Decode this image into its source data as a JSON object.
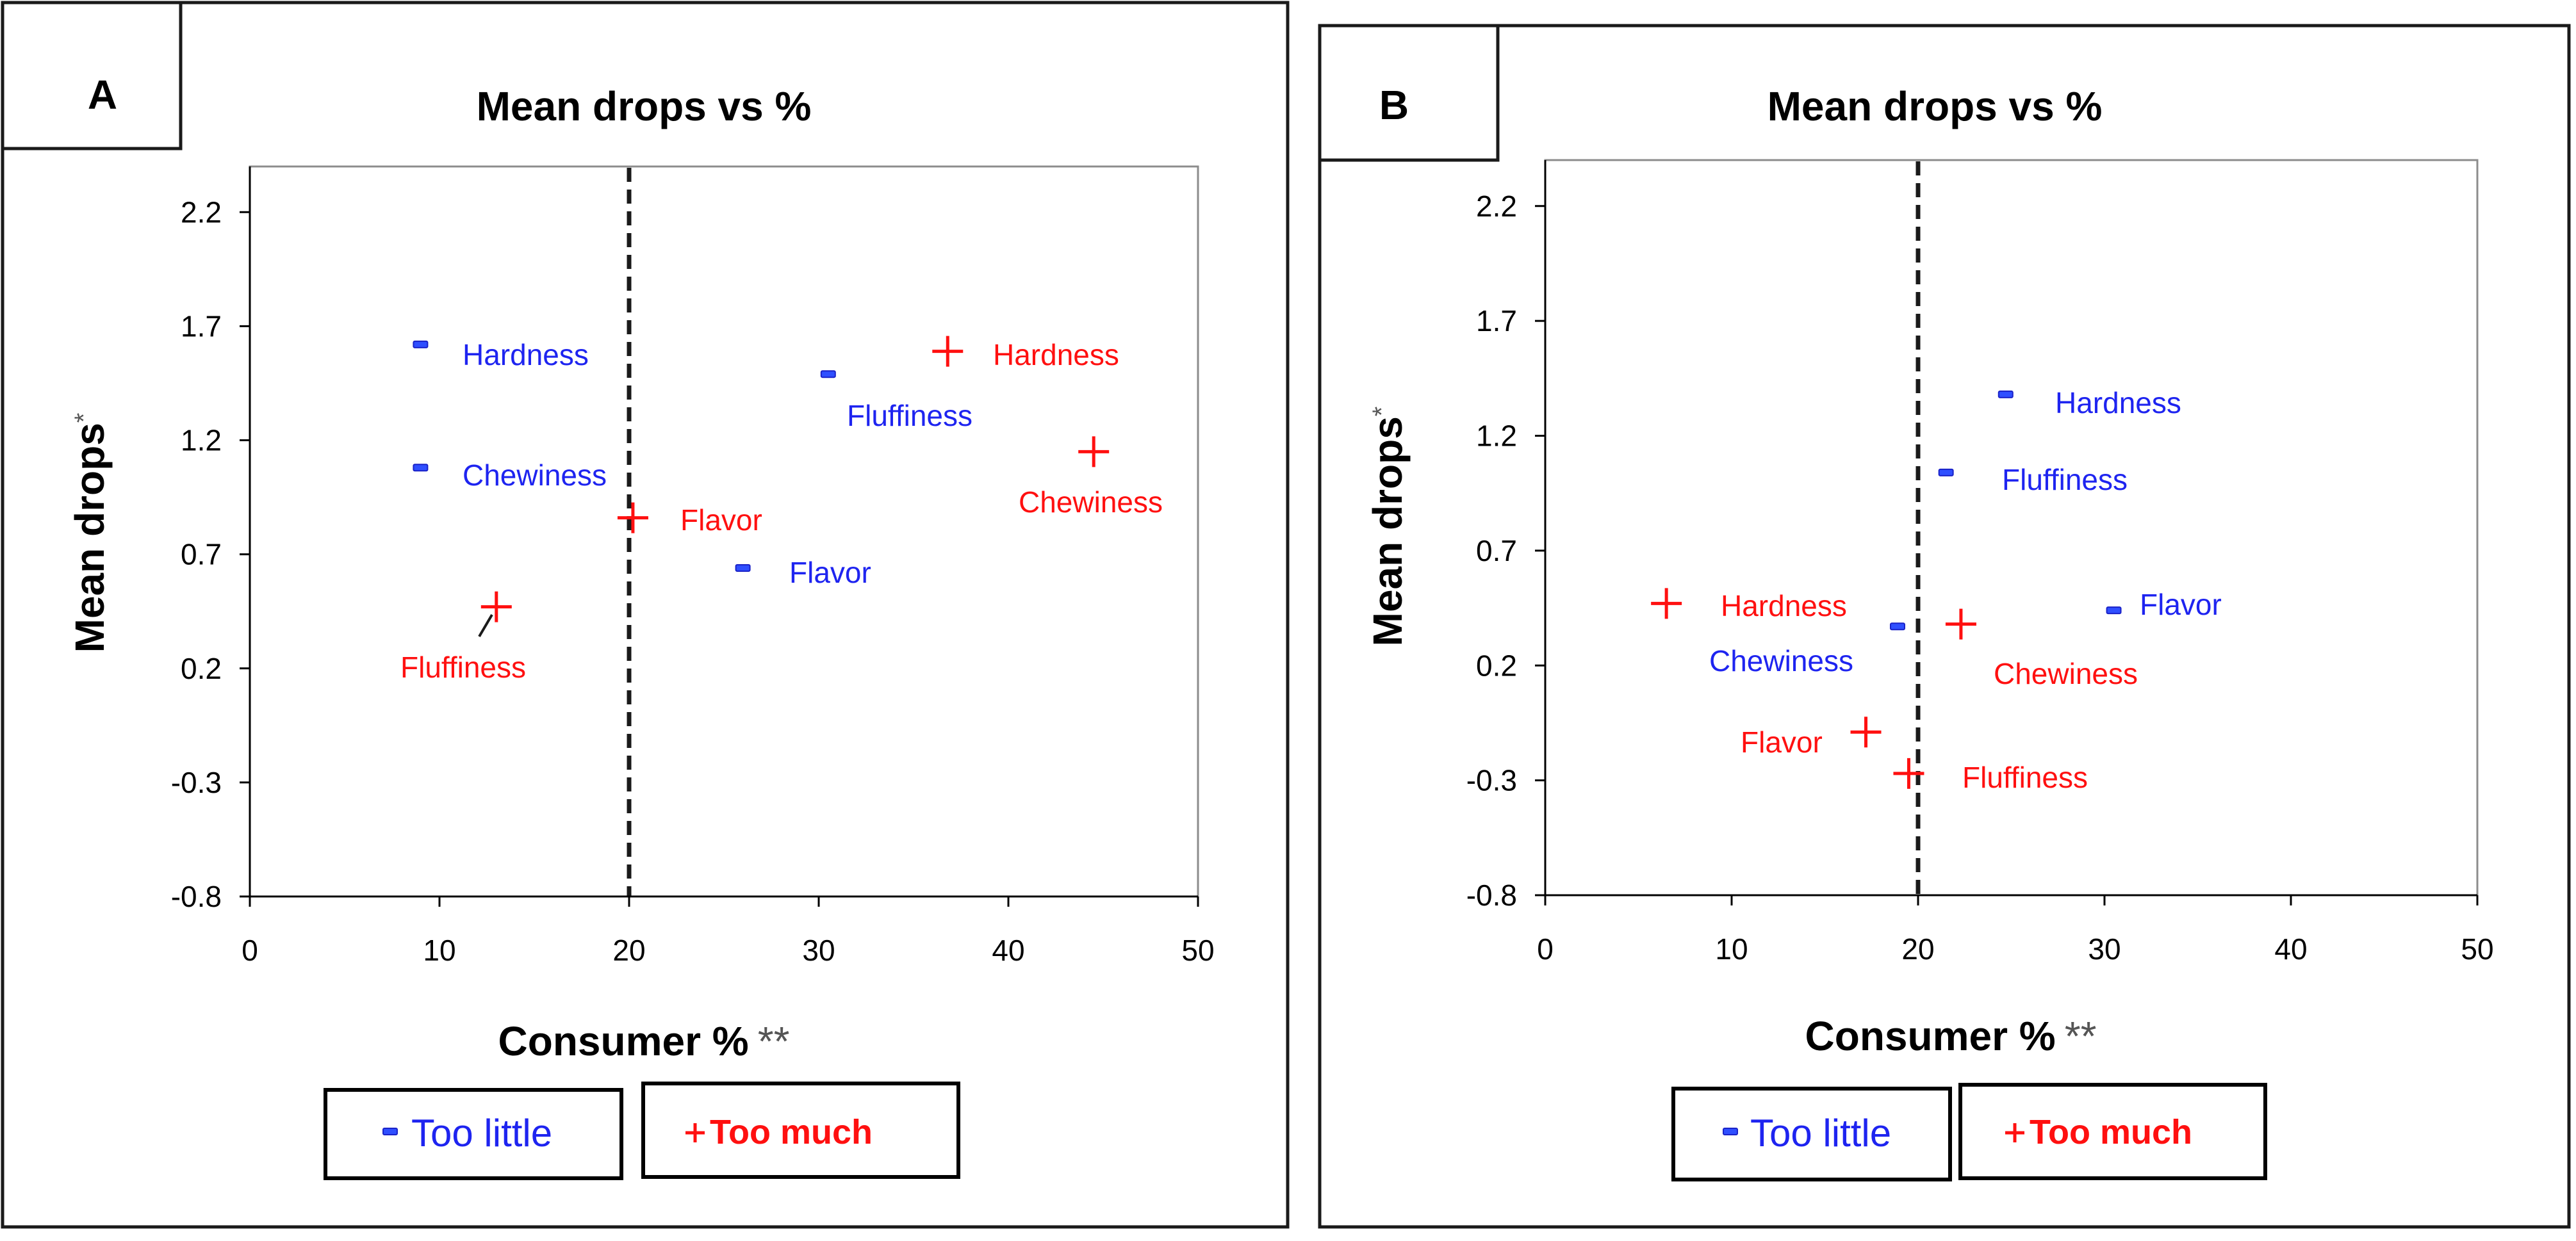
{
  "chart_data": [
    {
      "panel": "A",
      "type": "scatter",
      "title": "Mean drops vs %",
      "xlabel": "Consumer %",
      "xlabel_suffix": "**",
      "ylabel": "Mean drops",
      "ylabel_suffix": "*",
      "xlim": [
        0,
        50
      ],
      "ylim": [
        -0.8,
        2.4
      ],
      "xticks": [
        0,
        10,
        20,
        30,
        40,
        50
      ],
      "yticks": [
        -0.8,
        -0.3,
        0.2,
        0.7,
        1.2,
        1.7,
        2.2
      ],
      "reference_x": 20,
      "series": [
        {
          "name": "Too little",
          "marker": "dash",
          "color": "#1e24f0",
          "points": [
            {
              "label": "Hardness",
              "x": 9.0,
              "y": 1.62
            },
            {
              "label": "Chewiness",
              "x": 9.0,
              "y": 1.08
            },
            {
              "label": "Fluffiness",
              "x": 30.5,
              "y": 1.49
            },
            {
              "label": "Flavor",
              "x": 26.0,
              "y": 0.64
            }
          ]
        },
        {
          "name": "Too much",
          "marker": "plus",
          "color": "#ff1010",
          "points": [
            {
              "label": "Hardness",
              "x": 36.8,
              "y": 1.59
            },
            {
              "label": "Chewiness",
              "x": 44.5,
              "y": 1.15
            },
            {
              "label": "Flavor",
              "x": 20.2,
              "y": 0.86
            },
            {
              "label": "Fluffiness",
              "x": 13.0,
              "y": 0.47
            }
          ]
        }
      ],
      "legend": {
        "too_little": "Too little",
        "too_much": "Too much"
      }
    },
    {
      "panel": "B",
      "type": "scatter",
      "title": "Mean drops vs %",
      "xlabel": "Consumer %",
      "xlabel_suffix": "**",
      "ylabel": "Mean drops",
      "ylabel_suffix": "*",
      "xlim": [
        0,
        50
      ],
      "ylim": [
        -0.8,
        2.4
      ],
      "xticks": [
        0,
        10,
        20,
        30,
        40,
        50
      ],
      "yticks": [
        -0.8,
        -0.3,
        0.2,
        0.7,
        1.2,
        1.7,
        2.2
      ],
      "reference_x": 20,
      "series": [
        {
          "name": "Too little",
          "marker": "dash",
          "color": "#1e24f0",
          "points": [
            {
              "label": "Hardness",
              "x": 24.7,
              "y": 1.38
            },
            {
              "label": "Fluffiness",
              "x": 21.5,
              "y": 1.04
            },
            {
              "label": "Flavor",
              "x": 30.5,
              "y": 0.44
            },
            {
              "label": "Chewiness",
              "x": 18.9,
              "y": 0.37
            }
          ]
        },
        {
          "name": "Too much",
          "marker": "plus",
          "color": "#ff1010",
          "points": [
            {
              "label": "Hardness",
              "x": 6.5,
              "y": 0.47
            },
            {
              "label": "Chewiness",
              "x": 22.3,
              "y": 0.38
            },
            {
              "label": "Flavor",
              "x": 17.2,
              "y": -0.09
            },
            {
              "label": "Fluffiness",
              "x": 19.5,
              "y": -0.27
            }
          ]
        }
      ],
      "legend": {
        "too_little": "Too little",
        "too_much": "Too much"
      }
    }
  ]
}
